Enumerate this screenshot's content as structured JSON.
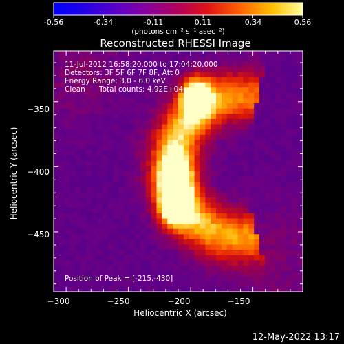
{
  "colorbar": {
    "tick_labels": [
      "-0.56",
      "-0.34",
      "-0.11",
      "0.11",
      "0.34",
      "0.56"
    ],
    "range": [
      -0.56,
      0.56
    ],
    "units": "(photons cm⁻² s⁻¹ asec⁻²)"
  },
  "chart_data": {
    "type": "heatmap",
    "title": "Reconstructed RHESSI Image",
    "xlabel": "Heliocentric X (arcsec)",
    "ylabel": "Heliocentric Y (arcsec)",
    "xlim": [
      -310,
      -110
    ],
    "ylim": [
      -496,
      -311
    ],
    "x_ticks": [
      -300,
      -250,
      -200,
      -150
    ],
    "y_ticks": [
      -350,
      -400,
      -450
    ],
    "x_tick_labels": [
      "−300",
      "−250",
      "−200",
      "−150"
    ],
    "y_tick_labels": [
      "−350",
      "−400",
      "−450"
    ],
    "sources": [
      {
        "x": -213,
        "y": -430,
        "peak": 0.56
      },
      {
        "x": -212,
        "y": -408,
        "peak": 0.45
      },
      {
        "x": -196,
        "y": -346,
        "peak": 0.5
      }
    ],
    "peak_position": [
      -215,
      -430
    ]
  },
  "info": {
    "line1": "11-Jul-2012 16:58:20.000 to 17:04:20.000",
    "line2": "Detectors: 3F 5F 6F 7F 8F, Att 0",
    "line3": "Energy Range: 3.0 - 6.0 keV",
    "line4a": "Clean",
    "line4b": "Total counts: 4.92E+04",
    "peak_text": "Position of Peak = [-215,-430]"
  },
  "timestamp": "12-May-2022 13:17"
}
